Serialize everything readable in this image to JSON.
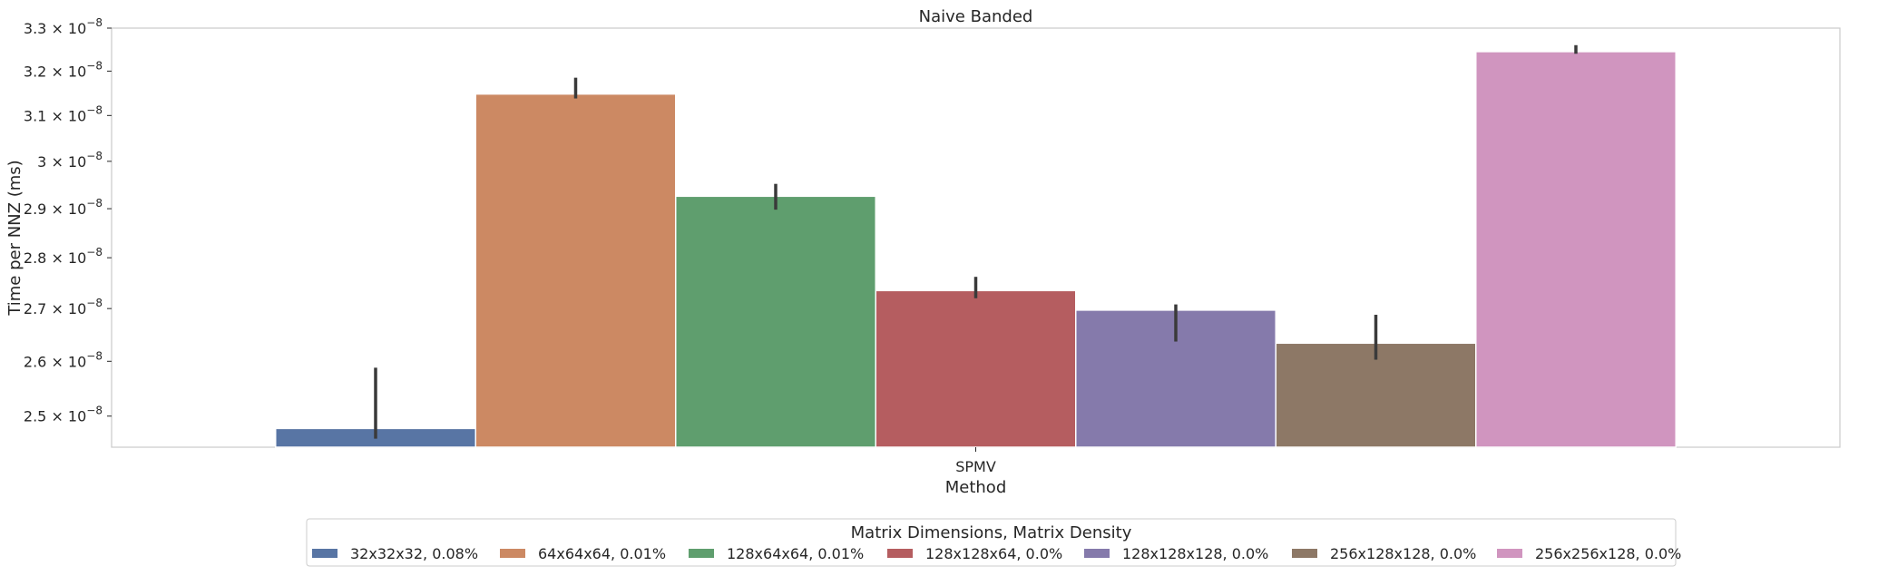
{
  "chart_data": {
    "type": "bar",
    "title": "Naive Banded",
    "xlabel": "Method",
    "ylabel": "Time per NNZ (ms)",
    "yscale": "log",
    "ylim": [
      2.445e-08,
      3.3e-08
    ],
    "categories": [
      "SPMV"
    ],
    "y_ticks": [
      {
        "value": 2.5e-08,
        "mantissa": "2.5"
      },
      {
        "value": 2.6e-08,
        "mantissa": "2.6"
      },
      {
        "value": 2.7e-08,
        "mantissa": "2.7"
      },
      {
        "value": 2.8e-08,
        "mantissa": "2.8"
      },
      {
        "value": 2.9e-08,
        "mantissa": "2.9"
      },
      {
        "value": 3e-08,
        "mantissa": "3"
      },
      {
        "value": 3.1e-08,
        "mantissa": "3.1"
      },
      {
        "value": 3.2e-08,
        "mantissa": "3.2"
      },
      {
        "value": 3.3e-08,
        "mantissa": "3.3"
      }
    ],
    "y_tick_multiplier": "× 10",
    "y_tick_exponent": "−8",
    "grid": false,
    "legend": {
      "title": "Matrix Dimensions, Matrix Density",
      "placement": "bottom-center"
    },
    "series": [
      {
        "name": "32x32x32, 0.08%",
        "color": "#5875a4",
        "values": [
          2.478e-08
        ],
        "err": [
          [
            2.46e-08,
            2.588e-08
          ]
        ]
      },
      {
        "name": "64x64x64, 0.01%",
        "color": "#cc8963",
        "values": [
          3.148e-08
        ],
        "err": [
          [
            3.138e-08,
            3.185e-08
          ]
        ]
      },
      {
        "name": "128x64x64, 0.01%",
        "color": "#5f9e6e",
        "values": [
          2.926e-08
        ],
        "err": [
          [
            2.898e-08,
            2.952e-08
          ]
        ]
      },
      {
        "name": "128x128x64, 0.0%",
        "color": "#b55d60",
        "values": [
          2.735e-08
        ],
        "err": [
          [
            2.72e-08,
            2.762e-08
          ]
        ]
      },
      {
        "name": "128x128x128, 0.0%",
        "color": "#857aab",
        "values": [
          2.697e-08
        ],
        "err": [
          [
            2.637e-08,
            2.708e-08
          ]
        ]
      },
      {
        "name": "256x128x128, 0.0%",
        "color": "#8d7866",
        "values": [
          2.634e-08
        ],
        "err": [
          [
            2.603e-08,
            2.688e-08
          ]
        ]
      },
      {
        "name": "256x256x128, 0.0%",
        "color": "#d095bf",
        "values": [
          3.245e-08
        ],
        "err": [
          [
            3.24e-08,
            3.26e-08
          ]
        ]
      }
    ]
  }
}
